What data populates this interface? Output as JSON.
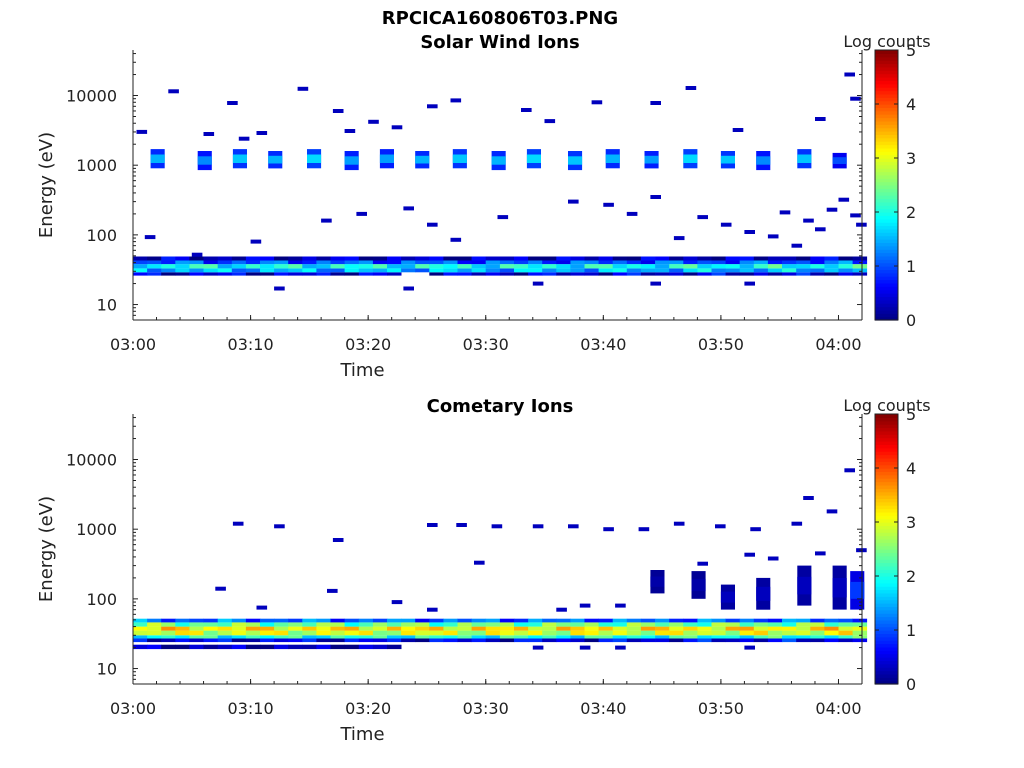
{
  "figure": {
    "filename": "RPCICA160806T03.PNG"
  },
  "chart_data": [
    {
      "type": "heatmap",
      "title": "Solar Wind Ions",
      "xlabel": "Time",
      "ylabel": "Energy (eV)",
      "x_ticks": [
        "03:00",
        "03:10",
        "03:20",
        "03:30",
        "03:40",
        "03:50",
        "04:00"
      ],
      "y_ticks": [
        "10",
        "100",
        "1000",
        "10000"
      ],
      "y_scale": "log",
      "xlim": [
        "03:00",
        "04:02"
      ],
      "ylim": [
        6,
        45000
      ],
      "colorbar": {
        "label": "Log counts",
        "range": [
          0,
          5
        ],
        "ticks": [
          "0",
          "1",
          "2",
          "3",
          "4",
          "5"
        ],
        "colormap": "jet"
      },
      "bands": [
        {
          "energy_range": [
            26,
            29
          ],
          "log_counts": 0.4,
          "time_start_min": 0,
          "time_end_min": 61.5,
          "gaps": [
            [
              22,
              24
            ]
          ]
        },
        {
          "energy_range": [
            29,
            33
          ],
          "log_counts": 1.5,
          "time_start_min": 0,
          "time_end_min": 61.5
        },
        {
          "energy_range": [
            33,
            38
          ],
          "log_counts": 1.9,
          "time_start_min": 0,
          "time_end_min": 61.5
        },
        {
          "energy_range": [
            38,
            43
          ],
          "log_counts": 1.0,
          "time_start_min": 0,
          "time_end_min": 61.5
        },
        {
          "energy_range": [
            43,
            49
          ],
          "log_counts": 0.3,
          "time_start_min": 0,
          "time_end_min": 61.5
        }
      ],
      "bursts": [
        {
          "time_min": 1.5,
          "energy_range": [
            900,
            1700
          ],
          "log_counts": 1.5
        },
        {
          "time_min": 5.5,
          "energy_range": [
            850,
            1600
          ],
          "log_counts": 1.3
        },
        {
          "time_min": 8.5,
          "energy_range": [
            900,
            1700
          ],
          "log_counts": 1.6
        },
        {
          "time_min": 11.5,
          "energy_range": [
            900,
            1600
          ],
          "log_counts": 1.5
        },
        {
          "time_min": 14.8,
          "energy_range": [
            900,
            1700
          ],
          "log_counts": 1.7
        },
        {
          "time_min": 18.0,
          "energy_range": [
            850,
            1600
          ],
          "log_counts": 1.4
        },
        {
          "time_min": 21.0,
          "energy_range": [
            900,
            1700
          ],
          "log_counts": 1.4
        },
        {
          "time_min": 24.0,
          "energy_range": [
            900,
            1600
          ],
          "log_counts": 1.5
        },
        {
          "time_min": 27.2,
          "energy_range": [
            900,
            1700
          ],
          "log_counts": 1.6
        },
        {
          "time_min": 30.5,
          "energy_range": [
            850,
            1600
          ],
          "log_counts": 1.5
        },
        {
          "time_min": 33.5,
          "energy_range": [
            900,
            1700
          ],
          "log_counts": 1.7
        },
        {
          "time_min": 37.0,
          "energy_range": [
            850,
            1600
          ],
          "log_counts": 1.6
        },
        {
          "time_min": 40.2,
          "energy_range": [
            900,
            1700
          ],
          "log_counts": 1.5
        },
        {
          "time_min": 43.5,
          "energy_range": [
            900,
            1600
          ],
          "log_counts": 1.4
        },
        {
          "time_min": 46.8,
          "energy_range": [
            900,
            1700
          ],
          "log_counts": 1.7
        },
        {
          "time_min": 50.0,
          "energy_range": [
            900,
            1600
          ],
          "log_counts": 1.6
        },
        {
          "time_min": 53.0,
          "energy_range": [
            850,
            1600
          ],
          "log_counts": 1.3
        },
        {
          "time_min": 56.5,
          "energy_range": [
            900,
            1700
          ],
          "log_counts": 1.6
        },
        {
          "time_min": 59.5,
          "energy_range": [
            900,
            1500
          ],
          "log_counts": 1.0
        }
      ],
      "scatter": [
        [
          0.3,
          3000,
          0.3
        ],
        [
          3,
          11500,
          0.3
        ],
        [
          6,
          2800,
          0.3
        ],
        [
          8,
          7800,
          0.3
        ],
        [
          9,
          2400,
          0.3
        ],
        [
          10.5,
          2900,
          0.3
        ],
        [
          14,
          12500,
          0.3
        ],
        [
          17,
          6000,
          0.3
        ],
        [
          18,
          3100,
          0.3
        ],
        [
          20,
          4200,
          0.3
        ],
        [
          22,
          3500,
          0.3
        ],
        [
          25,
          7000,
          0.3
        ],
        [
          27,
          8500,
          0.3
        ],
        [
          33,
          6200,
          0.3
        ],
        [
          35,
          4300,
          0.3
        ],
        [
          39,
          8000,
          0.3
        ],
        [
          44,
          7800,
          0.3
        ],
        [
          47,
          12800,
          0.3
        ],
        [
          51,
          3200,
          0.3
        ],
        [
          58,
          4600,
          0.3
        ],
        [
          60.5,
          20000,
          0.3
        ],
        [
          61,
          9000,
          0.3
        ],
        [
          16,
          160,
          0.3
        ],
        [
          19,
          200,
          0.3
        ],
        [
          23,
          240,
          0.3
        ],
        [
          25,
          140,
          0.3
        ],
        [
          27,
          85,
          0.3
        ],
        [
          31,
          180,
          0.3
        ],
        [
          37,
          300,
          0.3
        ],
        [
          40,
          270,
          0.3
        ],
        [
          42,
          200,
          0.3
        ],
        [
          44,
          350,
          0.3
        ],
        [
          46,
          90,
          0.3
        ],
        [
          48,
          180,
          0.3
        ],
        [
          50,
          140,
          0.3
        ],
        [
          52,
          110,
          0.3
        ],
        [
          54,
          95,
          0.3
        ],
        [
          55,
          210,
          0.3
        ],
        [
          57,
          160,
          0.3
        ],
        [
          58,
          120,
          0.3
        ],
        [
          59,
          230,
          0.3
        ],
        [
          60,
          320,
          0.3
        ],
        [
          61,
          190,
          0.3
        ],
        [
          61.5,
          140,
          0.3
        ],
        [
          1,
          93,
          0.3
        ],
        [
          5,
          52,
          0.3
        ],
        [
          10,
          80,
          0.3
        ],
        [
          12,
          17,
          0.3
        ],
        [
          23,
          17,
          0.3
        ],
        [
          34,
          20,
          0.3
        ],
        [
          44,
          20,
          0.3
        ],
        [
          52,
          20,
          0.3
        ],
        [
          56,
          70,
          0.3
        ]
      ]
    },
    {
      "type": "heatmap",
      "title": "Cometary Ions",
      "xlabel": "Time",
      "ylabel": "Energy (eV)",
      "x_ticks": [
        "03:00",
        "03:10",
        "03:20",
        "03:30",
        "03:40",
        "03:50",
        "04:00"
      ],
      "y_ticks": [
        "10",
        "100",
        "1000",
        "10000"
      ],
      "y_scale": "log",
      "xlim": [
        "03:00",
        "04:02"
      ],
      "ylim": [
        6,
        45000
      ],
      "colorbar": {
        "label": "Log counts",
        "range": [
          0,
          5
        ],
        "ticks": [
          "0",
          "1",
          "2",
          "3",
          "4",
          "5"
        ],
        "colormap": "jet"
      },
      "bands": [
        {
          "energy_range": [
            19,
            22
          ],
          "log_counts": 0.2,
          "time_start_min": 0,
          "time_end_min": 22
        },
        {
          "energy_range": [
            24,
            27
          ],
          "log_counts": 0.5,
          "time_start_min": 0,
          "time_end_min": 61.5
        },
        {
          "energy_range": [
            27,
            30
          ],
          "log_counts": 2.0,
          "time_start_min": 0,
          "time_end_min": 61.5
        },
        {
          "energy_range": [
            30,
            35
          ],
          "log_counts": 2.9,
          "time_start_min": 0,
          "time_end_min": 61.5
        },
        {
          "energy_range": [
            35,
            40
          ],
          "log_counts": 3.2,
          "time_start_min": 0,
          "time_end_min": 61.5
        },
        {
          "energy_range": [
            40,
            46
          ],
          "log_counts": 2.4,
          "time_start_min": 0,
          "time_end_min": 61.5
        },
        {
          "energy_range": [
            46,
            52
          ],
          "log_counts": 1.1,
          "time_start_min": 0,
          "time_end_min": 61.5
        }
      ],
      "bursts": [
        {
          "time_min": 44,
          "energy_range": [
            120,
            260
          ],
          "log_counts": 0.2
        },
        {
          "time_min": 47.5,
          "energy_range": [
            100,
            250
          ],
          "log_counts": 0.2
        },
        {
          "time_min": 50,
          "energy_range": [
            70,
            160
          ],
          "log_counts": 0.3
        },
        {
          "time_min": 53,
          "energy_range": [
            70,
            200
          ],
          "log_counts": 0.3
        },
        {
          "time_min": 56.5,
          "energy_range": [
            80,
            300
          ],
          "log_counts": 0.3
        },
        {
          "time_min": 59.5,
          "energy_range": [
            70,
            300
          ],
          "log_counts": 0.3
        },
        {
          "time_min": 61,
          "energy_range": [
            70,
            250
          ],
          "log_counts": 0.9
        }
      ],
      "scatter": [
        [
          8.5,
          1200,
          0.3
        ],
        [
          12,
          1100,
          0.3
        ],
        [
          17,
          700,
          0.3
        ],
        [
          25,
          1150,
          0.3
        ],
        [
          27.5,
          1150,
          0.3
        ],
        [
          30.5,
          1100,
          0.3
        ],
        [
          34,
          1100,
          0.3
        ],
        [
          37,
          1100,
          0.3
        ],
        [
          40,
          1000,
          0.3
        ],
        [
          43,
          1000,
          0.3
        ],
        [
          46,
          1200,
          0.3
        ],
        [
          49.5,
          1100,
          0.3
        ],
        [
          52.5,
          1000,
          0.3
        ],
        [
          56,
          1200,
          0.3
        ],
        [
          57,
          2800,
          0.3
        ],
        [
          59,
          1800,
          0.3
        ],
        [
          60.5,
          7000,
          0.3
        ],
        [
          7,
          140,
          0.3
        ],
        [
          10.5,
          75,
          0.3
        ],
        [
          16.5,
          130,
          0.3
        ],
        [
          22,
          90,
          0.3
        ],
        [
          25,
          70,
          0.3
        ],
        [
          29,
          330,
          0.3
        ],
        [
          36,
          70,
          0.3
        ],
        [
          38,
          80,
          0.3
        ],
        [
          41,
          80,
          0.3
        ],
        [
          48,
          320,
          0.3
        ],
        [
          52,
          430,
          0.3
        ],
        [
          54,
          380,
          0.3
        ],
        [
          58,
          450,
          0.3
        ],
        [
          61.5,
          500,
          0.3
        ],
        [
          34,
          20,
          0.3
        ],
        [
          38,
          20,
          0.3
        ],
        [
          41,
          20,
          0.3
        ],
        [
          52,
          20,
          0.3
        ]
      ]
    }
  ]
}
